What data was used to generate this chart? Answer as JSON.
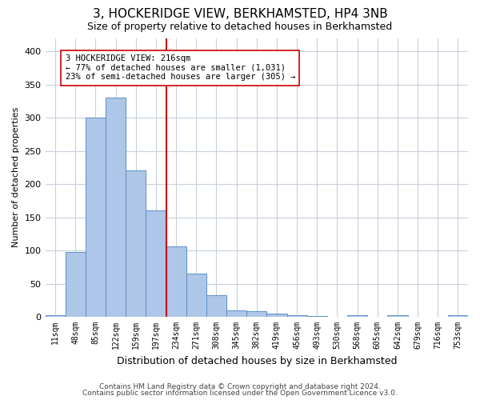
{
  "title": "3, HOCKERIDGE VIEW, BERKHAMSTED, HP4 3NB",
  "subtitle": "Size of property relative to detached houses in Berkhamsted",
  "xlabel": "Distribution of detached houses by size in Berkhamsted",
  "ylabel": "Number of detached properties",
  "bin_labels": [
    "11sqm",
    "48sqm",
    "85sqm",
    "122sqm",
    "159sqm",
    "197sqm",
    "234sqm",
    "271sqm",
    "308sqm",
    "345sqm",
    "382sqm",
    "419sqm",
    "456sqm",
    "493sqm",
    "530sqm",
    "568sqm",
    "605sqm",
    "642sqm",
    "679sqm",
    "716sqm",
    "753sqm"
  ],
  "bar_heights": [
    3,
    98,
    300,
    330,
    220,
    160,
    106,
    65,
    32,
    10,
    8,
    5,
    2,
    1,
    0,
    2,
    0,
    2,
    0,
    0,
    2
  ],
  "bar_color": "#aec6e8",
  "bar_edge_color": "#5a8fc3",
  "vline_color": "#cc0000",
  "annotation_line1": "3 HOCKERIDGE VIEW: 216sqm",
  "annotation_line2": "← 77% of detached houses are smaller (1,031)",
  "annotation_line3": "23% of semi-detached houses are larger (305) →",
  "annotation_box_color": "#ffffff",
  "annotation_box_edge": "#cc0000",
  "ylim": [
    0,
    420
  ],
  "yticks": [
    0,
    50,
    100,
    150,
    200,
    250,
    300,
    350,
    400
  ],
  "footer_line1": "Contains HM Land Registry data © Crown copyright and database right 2024.",
  "footer_line2": "Contains public sector information licensed under the Open Government Licence v3.0.",
  "background_color": "#ffffff",
  "grid_color": "#c8d0dc",
  "title_fontsize": 11,
  "subtitle_fontsize": 9,
  "ylabel_fontsize": 8,
  "xlabel_fontsize": 9,
  "tick_fontsize": 7,
  "ytick_fontsize": 8,
  "annotation_fontsize": 7.5,
  "footer_fontsize": 6.5
}
